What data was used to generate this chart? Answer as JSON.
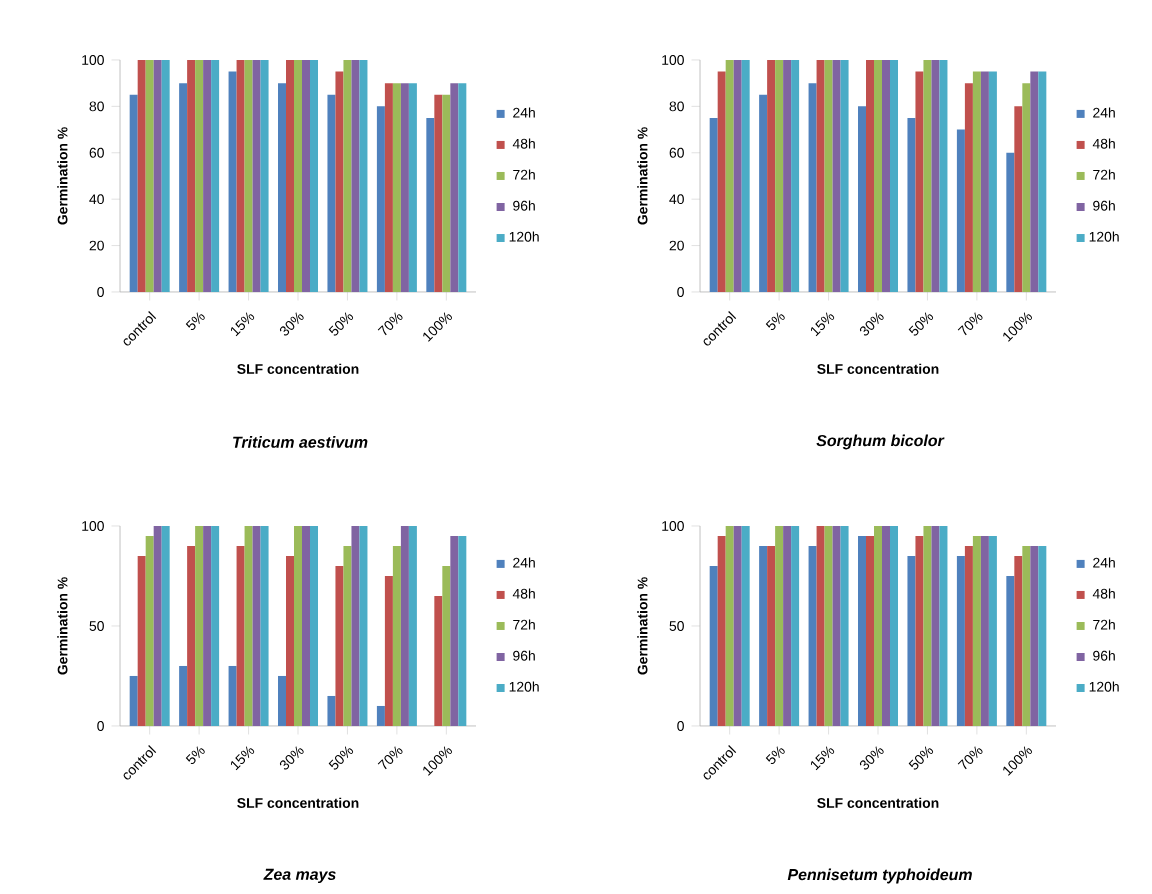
{
  "chart_data": [
    {
      "type": "bar",
      "title": "Triticum aestivum",
      "xlabel": "SLF concentration",
      "ylabel": "Germination %",
      "categories": [
        "control",
        "5%",
        "15%",
        "30%",
        "50%",
        "70%",
        "100%"
      ],
      "ylim": [
        0,
        100
      ],
      "yticks": [
        0,
        20,
        40,
        60,
        80,
        100
      ],
      "legend": "right",
      "series": [
        {
          "name": "24h",
          "color": "#4f81bd",
          "values": [
            85,
            90,
            95,
            90,
            85,
            80,
            75
          ]
        },
        {
          "name": "48h",
          "color": "#c0504d",
          "values": [
            100,
            100,
            100,
            100,
            95,
            90,
            85
          ]
        },
        {
          "name": "72h",
          "color": "#9bbb59",
          "values": [
            100,
            100,
            100,
            100,
            100,
            90,
            85
          ]
        },
        {
          "name": "96h",
          "color": "#8064a2",
          "values": [
            100,
            100,
            100,
            100,
            100,
            90,
            90
          ]
        },
        {
          "name": "120h",
          "color": "#4bacc6",
          "values": [
            100,
            100,
            100,
            100,
            100,
            90,
            90
          ]
        }
      ]
    },
    {
      "type": "bar",
      "title": "Sorghum bicolor",
      "xlabel": "SLF concentration",
      "ylabel": "Germination %",
      "categories": [
        "control",
        "5%",
        "15%",
        "30%",
        "50%",
        "70%",
        "100%"
      ],
      "ylim": [
        0,
        100
      ],
      "yticks": [
        0,
        20,
        40,
        60,
        80,
        100
      ],
      "legend": "right",
      "series": [
        {
          "name": "24h",
          "color": "#4f81bd",
          "values": [
            75,
            85,
            90,
            80,
            75,
            70,
            60
          ]
        },
        {
          "name": "48h",
          "color": "#c0504d",
          "values": [
            95,
            100,
            100,
            100,
            95,
            90,
            80
          ]
        },
        {
          "name": "72h",
          "color": "#9bbb59",
          "values": [
            100,
            100,
            100,
            100,
            100,
            95,
            90
          ]
        },
        {
          "name": "96h",
          "color": "#8064a2",
          "values": [
            100,
            100,
            100,
            100,
            100,
            95,
            95
          ]
        },
        {
          "name": "120h",
          "color": "#4bacc6",
          "values": [
            100,
            100,
            100,
            100,
            100,
            95,
            95
          ]
        }
      ]
    },
    {
      "type": "bar",
      "title": "Zea mays",
      "xlabel": "SLF concentration",
      "ylabel": "Germination %",
      "categories": [
        "control",
        "5%",
        "15%",
        "30%",
        "50%",
        "70%",
        "100%"
      ],
      "ylim": [
        0,
        100
      ],
      "yticks": [
        0,
        50,
        100
      ],
      "legend": "right",
      "series": [
        {
          "name": "24h",
          "color": "#4f81bd",
          "values": [
            25,
            30,
            30,
            25,
            15,
            10,
            0
          ]
        },
        {
          "name": "48h",
          "color": "#c0504d",
          "values": [
            85,
            90,
            90,
            85,
            80,
            75,
            65
          ]
        },
        {
          "name": "72h",
          "color": "#9bbb59",
          "values": [
            95,
            100,
            100,
            100,
            90,
            90,
            80
          ]
        },
        {
          "name": "96h",
          "color": "#8064a2",
          "values": [
            100,
            100,
            100,
            100,
            100,
            100,
            95
          ]
        },
        {
          "name": "120h",
          "color": "#4bacc6",
          "values": [
            100,
            100,
            100,
            100,
            100,
            100,
            95
          ]
        }
      ]
    },
    {
      "type": "bar",
      "title": "Pennisetum typhoideum",
      "xlabel": "SLF concentration",
      "ylabel": "Germination %",
      "categories": [
        "control",
        "5%",
        "15%",
        "30%",
        "50%",
        "70%",
        "100%"
      ],
      "ylim": [
        0,
        100
      ],
      "yticks": [
        0,
        50,
        100
      ],
      "legend": "right",
      "series": [
        {
          "name": "24h",
          "color": "#4f81bd",
          "values": [
            80,
            90,
            90,
            95,
            85,
            85,
            75
          ]
        },
        {
          "name": "48h",
          "color": "#c0504d",
          "values": [
            95,
            90,
            100,
            95,
            95,
            90,
            85
          ]
        },
        {
          "name": "72h",
          "color": "#9bbb59",
          "values": [
            100,
            100,
            100,
            100,
            100,
            95,
            90
          ]
        },
        {
          "name": "96h",
          "color": "#8064a2",
          "values": [
            100,
            100,
            100,
            100,
            100,
            95,
            90
          ]
        },
        {
          "name": "120h",
          "color": "#4bacc6",
          "values": [
            100,
            100,
            100,
            100,
            100,
            95,
            90
          ]
        }
      ]
    }
  ]
}
